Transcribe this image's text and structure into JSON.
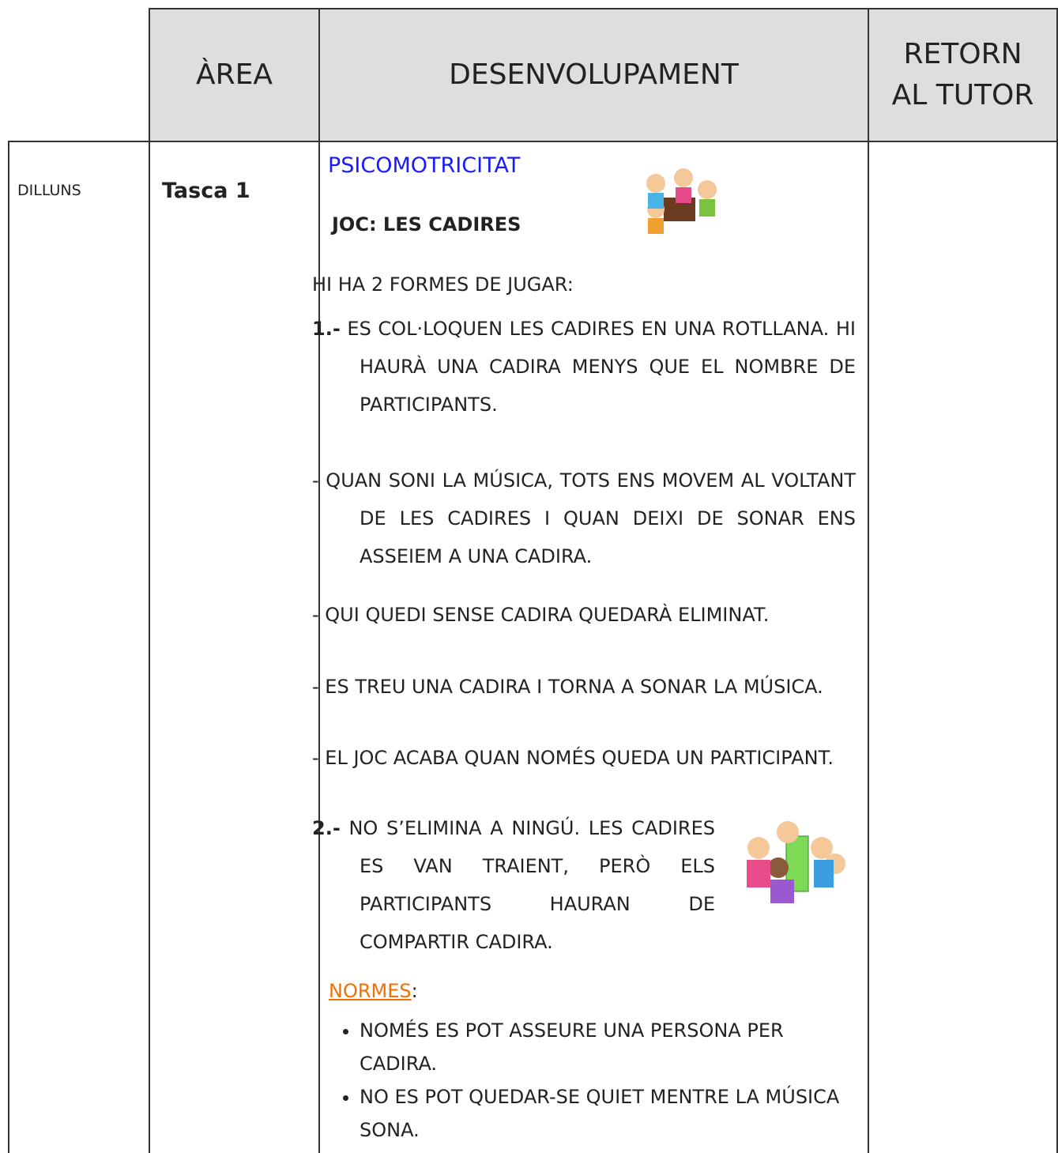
{
  "header": {
    "columns": [
      "ÀREA",
      "DESENVOLUPAMENT",
      "RETORN AL TUTOR"
    ]
  },
  "table": {
    "rows": [
      {
        "day": "DILLUNS",
        "task": "Tasca 1",
        "content": {
          "subject": "PSICOMOTRICITAT",
          "game": "JOC: LES CADIRES",
          "intro": "HI HA 2 FORMES DE JUGAR:",
          "ways": [
            {
              "marker": "1.-",
              "text": "ES COL·LOQUEN LES CADIRES EN UNA ROTLLANA. HI HAURÀ UNA CADIRA MENYS QUE EL NOMBRE DE PARTICIPANTS."
            }
          ],
          "steps": [
            "- QUAN SONI LA MÚSICA, TOTS ENS MOVEM AL VOLTANT DE LES CADIRES I QUAN DEIXI DE SONAR ENS ASSEIEM A UNA CADIRA.",
            "- QUI QUEDI SENSE CADIRA QUEDARÀ ELIMINAT.",
            "- ES TREU UNA CADIRA I TORNA A SONAR LA MÚSICA.",
            "- EL JOC ACABA QUAN NOMÉS QUEDA UN PARTICIPANT."
          ],
          "second": {
            "marker": "2.-",
            "text": "NO S’ELIMINA A NINGÚ. LES CADIRES ES VAN TRAIENT, PERÒ ELS PARTICIPANTS HAURAN DE COMPARTIR CADIRA."
          },
          "rules_title": "NORMES",
          "rules_colon": ":",
          "rules": [
            "NOMÉS ES POT ASSEURE UNA PERSONA PER CADIRA.",
            "NO ES POT QUEDAR-SE QUIET MENTRE LA MÚSICA SONA."
          ]
        }
      }
    ]
  }
}
